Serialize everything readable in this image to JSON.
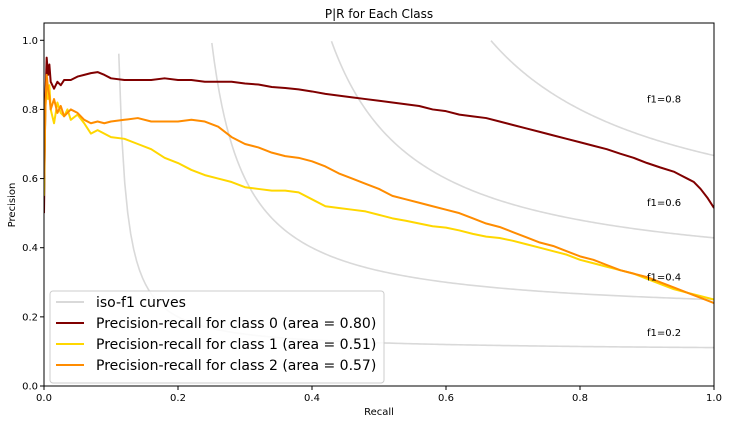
{
  "chart_data": {
    "type": "line",
    "title": "P|R for Each Class",
    "xlabel": "Recall",
    "ylabel": "Precision",
    "xlim": [
      0.0,
      1.0
    ],
    "ylim": [
      0.0,
      1.05
    ],
    "xticks": [
      "0.0",
      "0.2",
      "0.4",
      "0.6",
      "0.8",
      "1.0"
    ],
    "yticks": [
      "0.0",
      "0.2",
      "0.4",
      "0.6",
      "0.8",
      "1.0"
    ],
    "grid": false,
    "legend_position": "lower-left",
    "iso_f1": {
      "legend_label": "iso-f1 curves",
      "color": "#d9d9d9",
      "values": [
        0.2,
        0.4,
        0.6,
        0.8
      ],
      "labels": [
        "f1=0.2",
        "f1=0.4",
        "f1=0.6",
        "f1=0.8"
      ]
    },
    "series": [
      {
        "name": "Precision-recall for class 0 (area = 0.80)",
        "color": "#800000",
        "points": [
          [
            0.0,
            0.5
          ],
          [
            0.002,
            0.82
          ],
          [
            0.004,
            0.95
          ],
          [
            0.006,
            0.9
          ],
          [
            0.008,
            0.93
          ],
          [
            0.01,
            0.88
          ],
          [
            0.015,
            0.86
          ],
          [
            0.02,
            0.88
          ],
          [
            0.025,
            0.87
          ],
          [
            0.03,
            0.885
          ],
          [
            0.04,
            0.885
          ],
          [
            0.05,
            0.895
          ],
          [
            0.06,
            0.9
          ],
          [
            0.07,
            0.905
          ],
          [
            0.08,
            0.908
          ],
          [
            0.09,
            0.9
          ],
          [
            0.1,
            0.89
          ],
          [
            0.12,
            0.885
          ],
          [
            0.14,
            0.885
          ],
          [
            0.16,
            0.885
          ],
          [
            0.18,
            0.89
          ],
          [
            0.2,
            0.885
          ],
          [
            0.22,
            0.885
          ],
          [
            0.24,
            0.88
          ],
          [
            0.26,
            0.88
          ],
          [
            0.28,
            0.88
          ],
          [
            0.3,
            0.875
          ],
          [
            0.32,
            0.872
          ],
          [
            0.34,
            0.865
          ],
          [
            0.36,
            0.862
          ],
          [
            0.38,
            0.858
          ],
          [
            0.4,
            0.852
          ],
          [
            0.42,
            0.845
          ],
          [
            0.44,
            0.84
          ],
          [
            0.46,
            0.835
          ],
          [
            0.48,
            0.83
          ],
          [
            0.5,
            0.825
          ],
          [
            0.52,
            0.82
          ],
          [
            0.54,
            0.815
          ],
          [
            0.56,
            0.81
          ],
          [
            0.58,
            0.8
          ],
          [
            0.6,
            0.795
          ],
          [
            0.62,
            0.785
          ],
          [
            0.64,
            0.78
          ],
          [
            0.66,
            0.775
          ],
          [
            0.68,
            0.765
          ],
          [
            0.7,
            0.755
          ],
          [
            0.72,
            0.745
          ],
          [
            0.74,
            0.735
          ],
          [
            0.76,
            0.725
          ],
          [
            0.78,
            0.715
          ],
          [
            0.8,
            0.705
          ],
          [
            0.82,
            0.695
          ],
          [
            0.84,
            0.685
          ],
          [
            0.86,
            0.672
          ],
          [
            0.88,
            0.66
          ],
          [
            0.9,
            0.645
          ],
          [
            0.92,
            0.632
          ],
          [
            0.94,
            0.62
          ],
          [
            0.95,
            0.61
          ],
          [
            0.96,
            0.6
          ],
          [
            0.97,
            0.59
          ],
          [
            0.98,
            0.57
          ],
          [
            0.99,
            0.545
          ],
          [
            1.0,
            0.515
          ]
        ]
      },
      {
        "name": "Precision-recall for class 1 (area = 0.51)",
        "color": "#ffd700",
        "points": [
          [
            0.0,
            0.55
          ],
          [
            0.002,
            0.8
          ],
          [
            0.004,
            0.88
          ],
          [
            0.006,
            0.83
          ],
          [
            0.008,
            0.87
          ],
          [
            0.01,
            0.8
          ],
          [
            0.015,
            0.76
          ],
          [
            0.02,
            0.82
          ],
          [
            0.025,
            0.79
          ],
          [
            0.03,
            0.78
          ],
          [
            0.035,
            0.8
          ],
          [
            0.04,
            0.77
          ],
          [
            0.05,
            0.785
          ],
          [
            0.06,
            0.76
          ],
          [
            0.07,
            0.73
          ],
          [
            0.08,
            0.74
          ],
          [
            0.09,
            0.73
          ],
          [
            0.1,
            0.72
          ],
          [
            0.12,
            0.715
          ],
          [
            0.14,
            0.7
          ],
          [
            0.16,
            0.685
          ],
          [
            0.18,
            0.66
          ],
          [
            0.2,
            0.645
          ],
          [
            0.22,
            0.625
          ],
          [
            0.24,
            0.61
          ],
          [
            0.26,
            0.6
          ],
          [
            0.28,
            0.59
          ],
          [
            0.3,
            0.575
          ],
          [
            0.32,
            0.57
          ],
          [
            0.34,
            0.565
          ],
          [
            0.36,
            0.565
          ],
          [
            0.38,
            0.56
          ],
          [
            0.4,
            0.54
          ],
          [
            0.42,
            0.52
          ],
          [
            0.44,
            0.515
          ],
          [
            0.46,
            0.51
          ],
          [
            0.48,
            0.505
          ],
          [
            0.5,
            0.495
          ],
          [
            0.52,
            0.485
          ],
          [
            0.54,
            0.478
          ],
          [
            0.56,
            0.47
          ],
          [
            0.58,
            0.462
          ],
          [
            0.6,
            0.458
          ],
          [
            0.62,
            0.45
          ],
          [
            0.64,
            0.44
          ],
          [
            0.66,
            0.432
          ],
          [
            0.68,
            0.428
          ],
          [
            0.7,
            0.42
          ],
          [
            0.72,
            0.41
          ],
          [
            0.74,
            0.4
          ],
          [
            0.76,
            0.39
          ],
          [
            0.78,
            0.38
          ],
          [
            0.8,
            0.365
          ],
          [
            0.82,
            0.355
          ],
          [
            0.84,
            0.345
          ],
          [
            0.86,
            0.335
          ],
          [
            0.88,
            0.325
          ],
          [
            0.9,
            0.31
          ],
          [
            0.92,
            0.295
          ],
          [
            0.94,
            0.28
          ],
          [
            0.96,
            0.27
          ],
          [
            0.98,
            0.26
          ],
          [
            1.0,
            0.25
          ]
        ]
      },
      {
        "name": "Precision-recall for class 2 (area = 0.57)",
        "color": "#ff8c00",
        "points": [
          [
            0.0,
            0.6
          ],
          [
            0.002,
            0.8
          ],
          [
            0.004,
            0.9
          ],
          [
            0.006,
            0.86
          ],
          [
            0.008,
            0.84
          ],
          [
            0.01,
            0.8
          ],
          [
            0.015,
            0.83
          ],
          [
            0.02,
            0.79
          ],
          [
            0.025,
            0.81
          ],
          [
            0.03,
            0.78
          ],
          [
            0.04,
            0.8
          ],
          [
            0.05,
            0.79
          ],
          [
            0.06,
            0.77
          ],
          [
            0.07,
            0.76
          ],
          [
            0.08,
            0.765
          ],
          [
            0.09,
            0.76
          ],
          [
            0.1,
            0.765
          ],
          [
            0.12,
            0.77
          ],
          [
            0.14,
            0.775
          ],
          [
            0.16,
            0.765
          ],
          [
            0.18,
            0.765
          ],
          [
            0.2,
            0.765
          ],
          [
            0.22,
            0.77
          ],
          [
            0.24,
            0.765
          ],
          [
            0.26,
            0.75
          ],
          [
            0.28,
            0.72
          ],
          [
            0.3,
            0.7
          ],
          [
            0.32,
            0.69
          ],
          [
            0.34,
            0.675
          ],
          [
            0.36,
            0.665
          ],
          [
            0.38,
            0.66
          ],
          [
            0.4,
            0.65
          ],
          [
            0.42,
            0.635
          ],
          [
            0.44,
            0.615
          ],
          [
            0.46,
            0.6
          ],
          [
            0.48,
            0.585
          ],
          [
            0.5,
            0.57
          ],
          [
            0.52,
            0.55
          ],
          [
            0.54,
            0.54
          ],
          [
            0.56,
            0.53
          ],
          [
            0.58,
            0.52
          ],
          [
            0.6,
            0.51
          ],
          [
            0.62,
            0.5
          ],
          [
            0.64,
            0.485
          ],
          [
            0.66,
            0.47
          ],
          [
            0.68,
            0.46
          ],
          [
            0.7,
            0.445
          ],
          [
            0.72,
            0.43
          ],
          [
            0.74,
            0.415
          ],
          [
            0.76,
            0.405
          ],
          [
            0.78,
            0.39
          ],
          [
            0.8,
            0.375
          ],
          [
            0.82,
            0.365
          ],
          [
            0.84,
            0.35
          ],
          [
            0.86,
            0.335
          ],
          [
            0.88,
            0.325
          ],
          [
            0.9,
            0.315
          ],
          [
            0.92,
            0.3
          ],
          [
            0.94,
            0.285
          ],
          [
            0.96,
            0.27
          ],
          [
            0.98,
            0.255
          ],
          [
            1.0,
            0.24
          ]
        ]
      }
    ]
  }
}
